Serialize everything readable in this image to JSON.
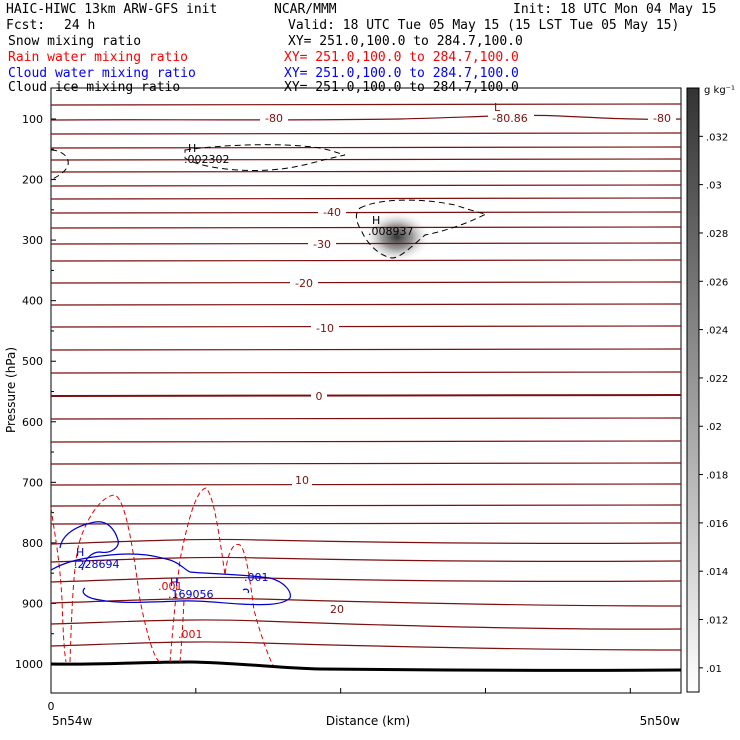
{
  "header": {
    "model": "HAIC-HIWC 13km ARW-GFS init",
    "center": "NCAR/MMM",
    "init": "Init: 18 UTC Mon 04 May 15",
    "fcst_label": "Fcst:",
    "fcst_value": "24 h",
    "valid": "Valid: 18 UTC Tue 05 May 15 (15 LST Tue 05 May 15)"
  },
  "fields": [
    {
      "name": "Snow mixing ratio",
      "xy": "XY= 251.0,100.0 to 284.7,100.0",
      "color": "#000000"
    },
    {
      "name": "Rain water mixing ratio",
      "xy": "XY= 251.0,100.0 to 284.7,100.0",
      "color": "#ff0000"
    },
    {
      "name": "Cloud water mixing ratio",
      "xy": "XY= 251.0,100.0 to 284.7,100.0",
      "color": "#0000ff"
    },
    {
      "name": "Cloud ice mixing ratio",
      "xy": "XY= 251.0,100.0 to 284.7,100.0",
      "color": "#000000"
    }
  ],
  "chart_data": {
    "type": "contour",
    "xlabel": "Distance (km)",
    "ylabel": "Pressure (hPa)",
    "x_start_label": "5n54w",
    "x_end_label": "5n50w",
    "x_origin_label": "0",
    "y_ticks": [
      100,
      200,
      300,
      400,
      500,
      600,
      700,
      800,
      900,
      1000
    ],
    "ylim": [
      1050,
      50
    ],
    "colorbar": {
      "unit": "g kg⁻¹",
      "ticks": [
        ".01",
        ".012",
        ".014",
        ".016",
        ".018",
        ".02",
        ".022",
        ".024",
        ".026",
        ".028",
        ".03",
        ".032"
      ],
      "range": [
        0.009,
        0.034
      ]
    },
    "temperature_contours": [
      {
        "label": "-80",
        "level": -80
      },
      {
        "label": "-80.86",
        "level": -80.86
      },
      {
        "label": "-40",
        "level": -40
      },
      {
        "label": "-30",
        "level": -30
      },
      {
        "label": "-20",
        "level": -20
      },
      {
        "label": "-10",
        "level": -10
      },
      {
        "label": "0",
        "level": 0
      },
      {
        "label": "10",
        "level": 10
      },
      {
        "label": "20",
        "level": 20
      }
    ],
    "extrema": [
      {
        "marker": "H",
        "value": ".002302",
        "field": "Cloud ice mixing ratio"
      },
      {
        "marker": "H",
        "value": ".008937",
        "field": "Snow mixing ratio"
      },
      {
        "marker": "L",
        "value": "-80.86",
        "field": "temperature"
      },
      {
        "marker": "H",
        "value": ".228694",
        "field": "Cloud water mixing ratio"
      },
      {
        "marker": "H",
        "value": ".169056",
        "field": "Cloud water mixing ratio"
      }
    ],
    "mixing_ratio_labels": [
      {
        "value": ".001",
        "field": "Cloud water mixing ratio"
      },
      {
        "value": ".001",
        "field": "Rain water mixing ratio"
      },
      {
        "value": ".001",
        "field": "Rain water mixing ratio"
      }
    ]
  },
  "colors": {
    "temperature": "#7a1010",
    "rain": "#e00000",
    "cloud_water": "#0000d0",
    "ice": "#000000",
    "terrain": "#000000"
  }
}
